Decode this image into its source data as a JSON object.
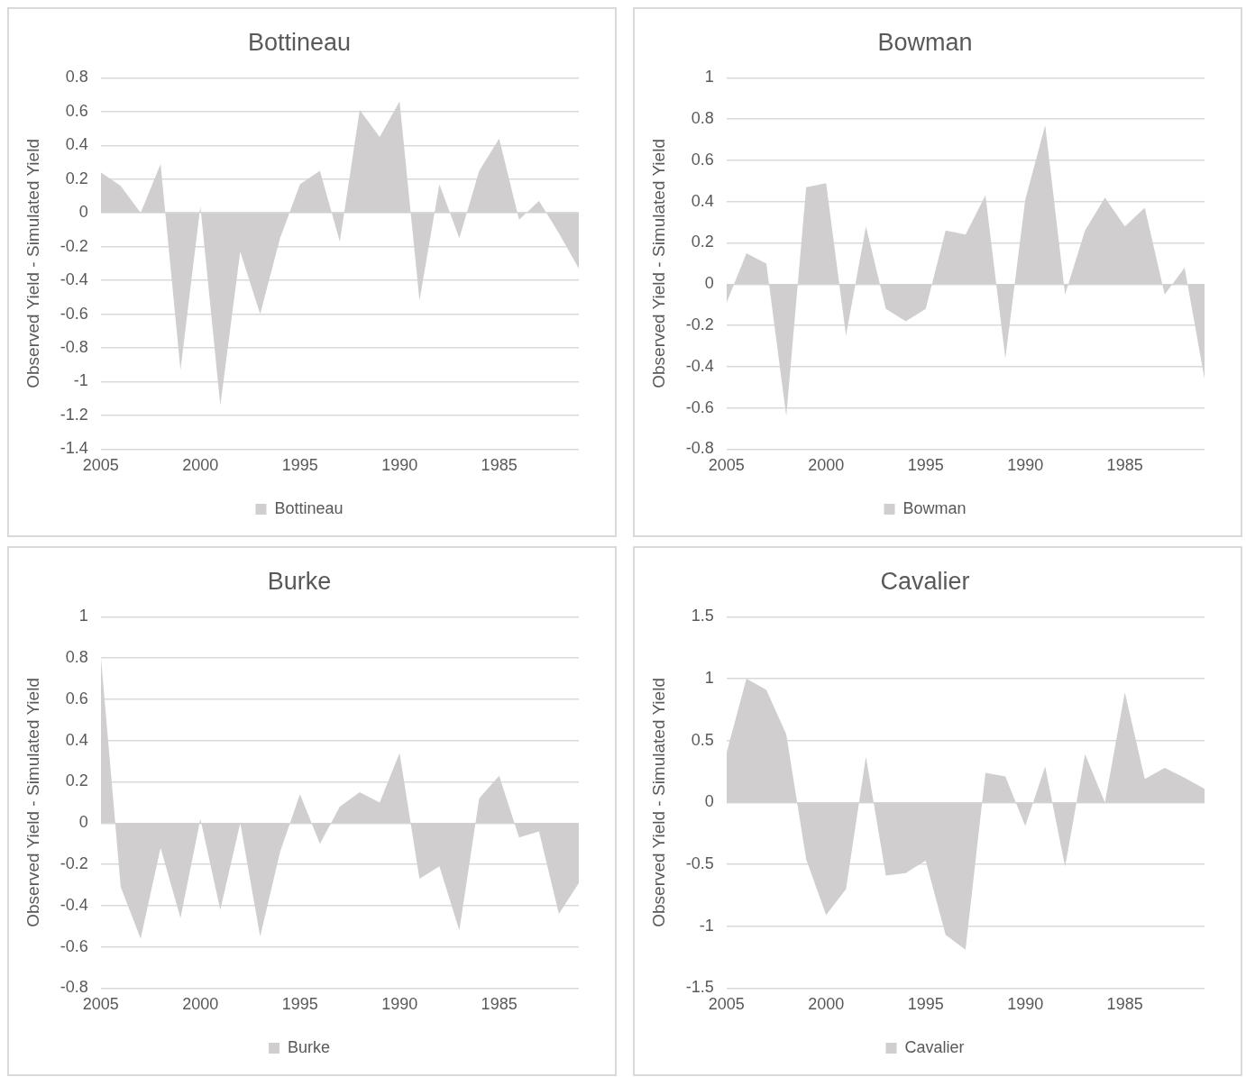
{
  "chart_data": [
    {
      "type": "area",
      "title": "Bottineau",
      "ylabel": "Observed Yield - Simulated Yield",
      "categories": [
        "2005",
        null,
        null,
        null,
        null,
        "2000",
        null,
        null,
        null,
        null,
        "1995",
        null,
        null,
        null,
        null,
        "1990",
        null,
        null,
        null,
        null,
        "1985",
        null,
        null,
        null,
        null
      ],
      "series": [
        {
          "name": "Bottineau",
          "color": "#d0cece",
          "values": [
            0.24,
            0.16,
            0.0,
            0.29,
            -0.93,
            0.04,
            -1.14,
            -0.23,
            -0.6,
            -0.15,
            0.17,
            0.25,
            -0.17,
            0.61,
            0.45,
            0.66,
            -0.52,
            0.17,
            -0.15,
            0.25,
            0.44,
            -0.04,
            0.07,
            -0.12,
            -0.33
          ]
        }
      ],
      "ylim": [
        -1.4,
        0.8
      ],
      "yticks": [
        -1.4,
        -1.2,
        -1,
        -0.8,
        -0.6,
        -0.4,
        -0.2,
        0,
        0.2,
        0.4,
        0.6,
        0.8
      ],
      "grid": "y",
      "legend": "bottom"
    },
    {
      "type": "area",
      "title": "Bowman",
      "ylabel": "Observed Yield - Simulated Yield",
      "categories": [
        "2005",
        null,
        null,
        null,
        null,
        "2000",
        null,
        null,
        null,
        null,
        "1995",
        null,
        null,
        null,
        null,
        "1990",
        null,
        null,
        null,
        null,
        "1985",
        null,
        null,
        null,
        null
      ],
      "series": [
        {
          "name": "Bowman",
          "color": "#d0cece",
          "values": [
            -0.09,
            0.15,
            0.1,
            -0.64,
            0.47,
            0.49,
            -0.25,
            0.28,
            -0.12,
            -0.18,
            -0.12,
            0.26,
            0.24,
            0.43,
            -0.36,
            0.41,
            0.77,
            -0.05,
            0.26,
            0.42,
            0.28,
            0.37,
            -0.05,
            0.08,
            -0.46
          ]
        }
      ],
      "ylim": [
        -0.8,
        1
      ],
      "yticks": [
        -0.8,
        -0.6,
        -0.4,
        -0.2,
        0,
        0.2,
        0.4,
        0.6,
        0.8,
        1
      ],
      "grid": "y",
      "legend": "bottom"
    },
    {
      "type": "area",
      "title": "Burke",
      "ylabel": "Observed Yield - Simulated Yield",
      "categories": [
        "2005",
        null,
        null,
        null,
        null,
        "2000",
        null,
        null,
        null,
        null,
        "1995",
        null,
        null,
        null,
        null,
        "1990",
        null,
        null,
        null,
        null,
        "1985",
        null,
        null,
        null,
        null
      ],
      "series": [
        {
          "name": "Burke",
          "color": "#d0cece",
          "values": [
            0.81,
            -0.31,
            -0.56,
            -0.12,
            -0.46,
            0.02,
            -0.42,
            0.0,
            -0.55,
            -0.14,
            0.14,
            -0.1,
            0.08,
            0.15,
            0.1,
            0.34,
            -0.27,
            -0.21,
            -0.52,
            0.12,
            0.23,
            -0.07,
            -0.04,
            -0.44,
            -0.29
          ]
        }
      ],
      "ylim": [
        -0.8,
        1
      ],
      "yticks": [
        -0.8,
        -0.6,
        -0.4,
        -0.2,
        0,
        0.2,
        0.4,
        0.6,
        0.8,
        1
      ],
      "grid": "y",
      "legend": "bottom"
    },
    {
      "type": "area",
      "title": "Cavalier",
      "ylabel": "Observed Yield - Simulated Yield",
      "categories": [
        "2005",
        null,
        null,
        null,
        null,
        "2000",
        null,
        null,
        null,
        null,
        "1995",
        null,
        null,
        null,
        null,
        "1990",
        null,
        null,
        null,
        null,
        "1985",
        null,
        null,
        null,
        null
      ],
      "series": [
        {
          "name": "Cavalier",
          "color": "#d0cece",
          "values": [
            0.4,
            1.0,
            0.91,
            0.55,
            -0.46,
            -0.91,
            -0.7,
            0.37,
            -0.59,
            -0.57,
            -0.47,
            -1.07,
            -1.19,
            0.24,
            0.21,
            -0.19,
            0.29,
            -0.52,
            0.39,
            0.0,
            0.89,
            0.19,
            0.28,
            0.2,
            0.11
          ]
        }
      ],
      "ylim": [
        -1.5,
        1.5
      ],
      "yticks": [
        -1.5,
        -1,
        -0.5,
        0,
        0.5,
        1,
        1.5
      ],
      "grid": "y",
      "legend": "bottom"
    }
  ]
}
